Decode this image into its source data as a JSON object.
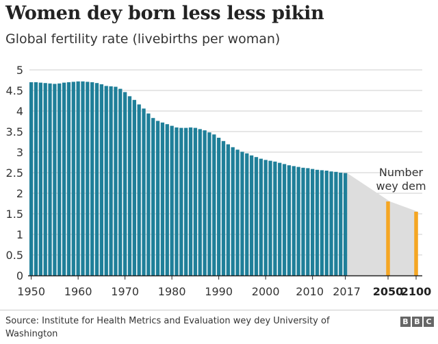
{
  "header": {
    "title": "Women dey born less less pikin",
    "subtitle": "Global fertility rate (livebirths per woman)"
  },
  "footer": {
    "source": "Source: Institute for Health Metrics and Evaluation wey dey University of Washington",
    "logo_letters": [
      "B",
      "B",
      "C"
    ]
  },
  "colors": {
    "historical": "#1f7f99",
    "projection": "#f5a623",
    "projection_band": "#dddddd",
    "grid": "#cccccc",
    "axis": "#222222"
  },
  "chart_data": {
    "type": "bar",
    "ylim": [
      0,
      5
    ],
    "yticks": [
      "0",
      "0.5",
      "1",
      "1.5",
      "2",
      "2.5",
      "3",
      "3.5",
      "4",
      "4.5",
      "5"
    ],
    "xticks": [
      "1950",
      "1960",
      "1970",
      "1980",
      "1990",
      "2000",
      "2010",
      "2017"
    ],
    "projection_xticks": [
      "2050",
      "2100"
    ],
    "annotation": "Number wey dem",
    "grid": true,
    "series": [
      {
        "kind": "historical",
        "x": [
          1950,
          1951,
          1952,
          1953,
          1954,
          1955,
          1956,
          1957,
          1958,
          1959,
          1960,
          1961,
          1962,
          1963,
          1964,
          1965,
          1966,
          1967,
          1968,
          1969,
          1970,
          1971,
          1972,
          1973,
          1974,
          1975,
          1976,
          1977,
          1978,
          1979,
          1980,
          1981,
          1982,
          1983,
          1984,
          1985,
          1986,
          1987,
          1988,
          1989,
          1990,
          1991,
          1992,
          1993,
          1994,
          1995,
          1996,
          1997,
          1998,
          1999,
          2000,
          2001,
          2002,
          2003,
          2004,
          2005,
          2006,
          2007,
          2008,
          2009,
          2010,
          2011,
          2012,
          2013,
          2014,
          2015,
          2016,
          2017
        ],
        "values": [
          4.7,
          4.7,
          4.69,
          4.68,
          4.67,
          4.66,
          4.67,
          4.69,
          4.7,
          4.71,
          4.72,
          4.72,
          4.71,
          4.7,
          4.68,
          4.65,
          4.61,
          4.6,
          4.59,
          4.54,
          4.46,
          4.36,
          4.27,
          4.16,
          4.06,
          3.94,
          3.83,
          3.76,
          3.72,
          3.68,
          3.64,
          3.6,
          3.59,
          3.59,
          3.6,
          3.59,
          3.56,
          3.53,
          3.48,
          3.43,
          3.35,
          3.27,
          3.19,
          3.12,
          3.06,
          3.01,
          2.97,
          2.92,
          2.88,
          2.84,
          2.81,
          2.79,
          2.77,
          2.74,
          2.71,
          2.68,
          2.66,
          2.64,
          2.62,
          2.61,
          2.59,
          2.57,
          2.56,
          2.55,
          2.53,
          2.52,
          2.5,
          2.49
        ]
      },
      {
        "kind": "projection",
        "x": [
          2050,
          2100
        ],
        "values": [
          1.8,
          1.55
        ]
      }
    ]
  }
}
